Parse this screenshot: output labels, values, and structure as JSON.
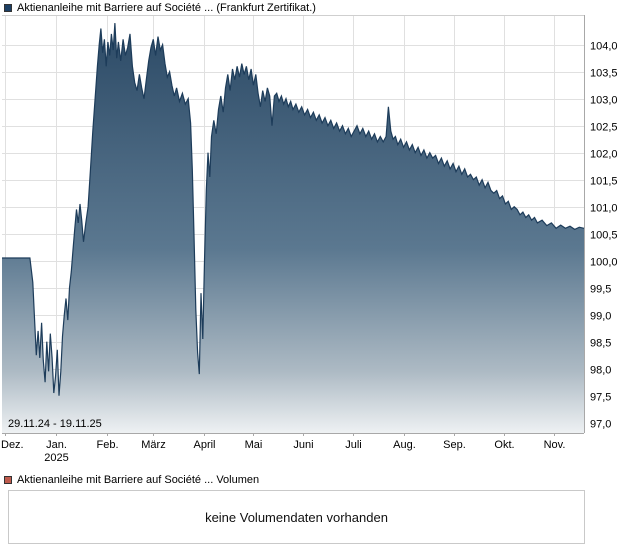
{
  "legend_top": {
    "label": "Aktienanleihe mit Barriere auf Société ... (Frankfurt Zertifikat.)",
    "color": "#1c3f63"
  },
  "legend_bottom": {
    "label": "Aktienanleihe mit Barriere auf Société ... Volumen",
    "color": "#bf5b4d"
  },
  "volume_box": {
    "message": "keine Volumendaten vorhanden"
  },
  "chart_data": {
    "type": "area",
    "title": "Aktienanleihe mit Barriere auf Société ... (Frankfurt Zertifikat.)",
    "date_range_label": "29.11.24 - 19.11.25",
    "ylim": [
      96.81,
      104.55
    ],
    "line_color": "#1d3c5a",
    "grid_color": "#e0e0e0",
    "axis_color": "#a8a8a8",
    "date_label_color": "#a6a6a6",
    "fill_stops": [
      [
        "0",
        "#2c4a66"
      ],
      [
        "0.55",
        "#5b7890"
      ],
      [
        "0.85",
        "#adbac4"
      ],
      [
        "1",
        "#eef1f3"
      ]
    ],
    "y_ticks": [
      {
        "value": 104.0,
        "label": "104,0"
      },
      {
        "value": 103.5,
        "label": "103,5"
      },
      {
        "value": 103.0,
        "label": "103,0"
      },
      {
        "value": 102.5,
        "label": "102,5"
      },
      {
        "value": 102.0,
        "label": "102,0"
      },
      {
        "value": 101.5,
        "label": "101,5"
      },
      {
        "value": 101.0,
        "label": "101,0"
      },
      {
        "value": 100.5,
        "label": "100,5"
      },
      {
        "value": 100.0,
        "label": "100,0"
      },
      {
        "value": 99.5,
        "label": "99,5"
      },
      {
        "value": 99.0,
        "label": "99,0"
      },
      {
        "value": 98.5,
        "label": "98,5"
      },
      {
        "value": 98.0,
        "label": "98,0"
      },
      {
        "value": 97.5,
        "label": "97,5"
      },
      {
        "value": 97.0,
        "label": "97,0"
      }
    ],
    "x_ticks": [
      {
        "pos": 0.006,
        "label": "Dez."
      },
      {
        "pos": 0.093,
        "label": "Jan.",
        "sublabel": "2025"
      },
      {
        "pos": 0.18,
        "label": "Feb."
      },
      {
        "pos": 0.259,
        "label": "März"
      },
      {
        "pos": 0.347,
        "label": "April"
      },
      {
        "pos": 0.431,
        "label": "Mai"
      },
      {
        "pos": 0.518,
        "label": "Juni"
      },
      {
        "pos": 0.603,
        "label": "Juli"
      },
      {
        "pos": 0.69,
        "label": "Aug."
      },
      {
        "pos": 0.777,
        "label": "Sep."
      },
      {
        "pos": 0.862,
        "label": "Okt."
      },
      {
        "pos": 0.949,
        "label": "Nov."
      }
    ],
    "series": [
      {
        "name": "Aktienanleihe mit Barriere auf Société ...",
        "points": [
          [
            0,
            100.05
          ],
          [
            0.012,
            100.05
          ],
          [
            0.024,
            100.05
          ],
          [
            0.036,
            100.05
          ],
          [
            0.048,
            100.05
          ],
          [
            0.053,
            99.6
          ],
          [
            0.056,
            98.9
          ],
          [
            0.059,
            98.25
          ],
          [
            0.062,
            98.7
          ],
          [
            0.065,
            98.2
          ],
          [
            0.068,
            98.85
          ],
          [
            0.071,
            98.15
          ],
          [
            0.074,
            97.75
          ],
          [
            0.077,
            98.5
          ],
          [
            0.08,
            97.95
          ],
          [
            0.083,
            98.65
          ],
          [
            0.086,
            98.2
          ],
          [
            0.089,
            97.55
          ],
          [
            0.092,
            97.85
          ],
          [
            0.095,
            98.35
          ],
          [
            0.098,
            97.5
          ],
          [
            0.101,
            97.95
          ],
          [
            0.104,
            98.6
          ],
          [
            0.107,
            99.0
          ],
          [
            0.11,
            99.3
          ],
          [
            0.113,
            98.9
          ],
          [
            0.116,
            99.5
          ],
          [
            0.119,
            99.8
          ],
          [
            0.122,
            100.2
          ],
          [
            0.125,
            100.6
          ],
          [
            0.128,
            100.95
          ],
          [
            0.131,
            100.7
          ],
          [
            0.134,
            101.05
          ],
          [
            0.137,
            100.75
          ],
          [
            0.14,
            100.35
          ],
          [
            0.144,
            100.7
          ],
          [
            0.148,
            101.0
          ],
          [
            0.152,
            101.7
          ],
          [
            0.156,
            102.4
          ],
          [
            0.16,
            103.0
          ],
          [
            0.164,
            103.6
          ],
          [
            0.167,
            104.0
          ],
          [
            0.17,
            104.3
          ],
          [
            0.173,
            103.85
          ],
          [
            0.176,
            104.1
          ],
          [
            0.179,
            103.6
          ],
          [
            0.182,
            104.05
          ],
          [
            0.185,
            103.8
          ],
          [
            0.188,
            104.2
          ],
          [
            0.191,
            103.9
          ],
          [
            0.194,
            104.4
          ],
          [
            0.197,
            103.75
          ],
          [
            0.2,
            104.05
          ],
          [
            0.204,
            103.7
          ],
          [
            0.208,
            104.1
          ],
          [
            0.212,
            103.8
          ],
          [
            0.216,
            103.95
          ],
          [
            0.22,
            104.2
          ],
          [
            0.224,
            103.6
          ],
          [
            0.228,
            103.3
          ],
          [
            0.232,
            103.15
          ],
          [
            0.236,
            103.45
          ],
          [
            0.24,
            103.2
          ],
          [
            0.244,
            103.0
          ],
          [
            0.248,
            103.35
          ],
          [
            0.252,
            103.7
          ],
          [
            0.256,
            103.95
          ],
          [
            0.26,
            104.1
          ],
          [
            0.264,
            103.8
          ],
          [
            0.268,
            104.15
          ],
          [
            0.272,
            103.9
          ],
          [
            0.276,
            104.0
          ],
          [
            0.28,
            103.65
          ],
          [
            0.284,
            103.4
          ],
          [
            0.288,
            103.5
          ],
          [
            0.292,
            103.25
          ],
          [
            0.296,
            103.05
          ],
          [
            0.3,
            103.2
          ],
          [
            0.305,
            102.95
          ],
          [
            0.31,
            103.1
          ],
          [
            0.315,
            102.9
          ],
          [
            0.32,
            103.0
          ],
          [
            0.324,
            102.55
          ],
          [
            0.327,
            101.7
          ],
          [
            0.33,
            100.4
          ],
          [
            0.333,
            99.1
          ],
          [
            0.336,
            98.3
          ],
          [
            0.339,
            97.9
          ],
          [
            0.342,
            99.4
          ],
          [
            0.345,
            98.55
          ],
          [
            0.348,
            100.0
          ],
          [
            0.351,
            101.3
          ],
          [
            0.354,
            102.0
          ],
          [
            0.357,
            101.55
          ],
          [
            0.36,
            102.3
          ],
          [
            0.364,
            102.6
          ],
          [
            0.368,
            102.35
          ],
          [
            0.372,
            102.8
          ],
          [
            0.376,
            103.05
          ],
          [
            0.38,
            102.75
          ],
          [
            0.384,
            103.2
          ],
          [
            0.388,
            103.45
          ],
          [
            0.392,
            103.15
          ],
          [
            0.396,
            103.55
          ],
          [
            0.4,
            103.35
          ],
          [
            0.404,
            103.6
          ],
          [
            0.408,
            103.4
          ],
          [
            0.412,
            103.65
          ],
          [
            0.416,
            103.45
          ],
          [
            0.42,
            103.6
          ],
          [
            0.424,
            103.35
          ],
          [
            0.428,
            103.55
          ],
          [
            0.432,
            103.25
          ],
          [
            0.436,
            103.45
          ],
          [
            0.44,
            103.1
          ],
          [
            0.444,
            102.85
          ],
          [
            0.448,
            103.15
          ],
          [
            0.452,
            102.95
          ],
          [
            0.456,
            103.2
          ],
          [
            0.46,
            103.05
          ],
          [
            0.464,
            102.5
          ],
          [
            0.468,
            103.05
          ],
          [
            0.472,
            103.1
          ],
          [
            0.476,
            102.95
          ],
          [
            0.48,
            103.05
          ],
          [
            0.484,
            102.9
          ],
          [
            0.488,
            103.0
          ],
          [
            0.492,
            102.85
          ],
          [
            0.496,
            102.95
          ],
          [
            0.5,
            102.8
          ],
          [
            0.505,
            102.9
          ],
          [
            0.51,
            102.75
          ],
          [
            0.515,
            102.85
          ],
          [
            0.52,
            102.7
          ],
          [
            0.525,
            102.8
          ],
          [
            0.53,
            102.65
          ],
          [
            0.535,
            102.75
          ],
          [
            0.54,
            102.6
          ],
          [
            0.545,
            102.7
          ],
          [
            0.55,
            102.55
          ],
          [
            0.555,
            102.65
          ],
          [
            0.56,
            102.5
          ],
          [
            0.565,
            102.6
          ],
          [
            0.57,
            102.45
          ],
          [
            0.575,
            102.55
          ],
          [
            0.58,
            102.4
          ],
          [
            0.585,
            102.5
          ],
          [
            0.59,
            102.35
          ],
          [
            0.595,
            102.45
          ],
          [
            0.6,
            102.3
          ],
          [
            0.605,
            102.4
          ],
          [
            0.61,
            102.5
          ],
          [
            0.615,
            102.35
          ],
          [
            0.62,
            102.45
          ],
          [
            0.625,
            102.3
          ],
          [
            0.63,
            102.4
          ],
          [
            0.635,
            102.25
          ],
          [
            0.64,
            102.35
          ],
          [
            0.645,
            102.2
          ],
          [
            0.65,
            102.3
          ],
          [
            0.655,
            102.2
          ],
          [
            0.66,
            102.3
          ],
          [
            0.664,
            102.85
          ],
          [
            0.668,
            102.4
          ],
          [
            0.672,
            102.25
          ],
          [
            0.676,
            102.3
          ],
          [
            0.68,
            102.15
          ],
          [
            0.685,
            102.25
          ],
          [
            0.69,
            102.1
          ],
          [
            0.695,
            102.2
          ],
          [
            0.7,
            102.05
          ],
          [
            0.705,
            102.15
          ],
          [
            0.71,
            102.0
          ],
          [
            0.715,
            102.1
          ],
          [
            0.72,
            101.95
          ],
          [
            0.725,
            102.05
          ],
          [
            0.73,
            101.9
          ],
          [
            0.735,
            102.0
          ],
          [
            0.74,
            101.9
          ],
          [
            0.745,
            101.95
          ],
          [
            0.75,
            101.8
          ],
          [
            0.755,
            101.9
          ],
          [
            0.76,
            101.75
          ],
          [
            0.765,
            101.85
          ],
          [
            0.77,
            101.7
          ],
          [
            0.775,
            101.8
          ],
          [
            0.78,
            101.65
          ],
          [
            0.785,
            101.75
          ],
          [
            0.79,
            101.6
          ],
          [
            0.795,
            101.7
          ],
          [
            0.8,
            101.55
          ],
          [
            0.805,
            101.6
          ],
          [
            0.81,
            101.5
          ],
          [
            0.815,
            101.55
          ],
          [
            0.82,
            101.4
          ],
          [
            0.825,
            101.5
          ],
          [
            0.83,
            101.35
          ],
          [
            0.835,
            101.45
          ],
          [
            0.84,
            101.3
          ],
          [
            0.845,
            101.25
          ],
          [
            0.85,
            101.3
          ],
          [
            0.855,
            101.15
          ],
          [
            0.86,
            101.2
          ],
          [
            0.865,
            101.05
          ],
          [
            0.87,
            101.1
          ],
          [
            0.875,
            100.95
          ],
          [
            0.88,
            101.0
          ],
          [
            0.885,
            100.95
          ],
          [
            0.89,
            100.85
          ],
          [
            0.895,
            100.9
          ],
          [
            0.9,
            100.8
          ],
          [
            0.905,
            100.85
          ],
          [
            0.91,
            100.75
          ],
          [
            0.915,
            100.8
          ],
          [
            0.92,
            100.7
          ],
          [
            0.928,
            100.75
          ],
          [
            0.936,
            100.65
          ],
          [
            0.944,
            100.7
          ],
          [
            0.952,
            100.6
          ],
          [
            0.96,
            100.66
          ],
          [
            0.968,
            100.6
          ],
          [
            0.976,
            100.64
          ],
          [
            0.984,
            100.58
          ],
          [
            0.992,
            100.62
          ],
          [
            1,
            100.6
          ]
        ]
      }
    ]
  }
}
